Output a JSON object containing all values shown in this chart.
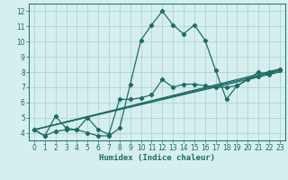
{
  "xlabel": "Humidex (Indice chaleur)",
  "xlim": [
    -0.5,
    23.5
  ],
  "ylim": [
    3.5,
    12.5
  ],
  "yticks": [
    4,
    5,
    6,
    7,
    8,
    9,
    10,
    11,
    12
  ],
  "xticks": [
    0,
    1,
    2,
    3,
    4,
    5,
    6,
    7,
    8,
    9,
    10,
    11,
    12,
    13,
    14,
    15,
    16,
    17,
    18,
    19,
    20,
    21,
    22,
    23
  ],
  "bg_color": "#d5efee",
  "grid_color": "#aed4d3",
  "line_color": "#1e6b65",
  "line1_x": [
    0,
    1,
    2,
    3,
    4,
    5,
    6,
    7,
    8,
    9,
    10,
    11,
    12,
    13,
    14,
    15,
    16,
    17,
    18,
    19,
    20,
    21,
    22,
    23
  ],
  "line1_y": [
    4.2,
    3.8,
    4.1,
    4.2,
    4.2,
    4.0,
    3.8,
    3.8,
    4.3,
    7.2,
    10.1,
    11.1,
    12.0,
    11.1,
    10.5,
    11.1,
    10.1,
    8.1,
    6.2,
    7.1,
    7.5,
    8.0,
    7.8,
    8.2
  ],
  "line2_x": [
    0,
    1,
    2,
    3,
    4,
    5,
    6,
    7,
    8,
    9,
    10,
    11,
    12,
    13,
    14,
    15,
    16,
    17,
    18,
    19,
    20,
    21,
    22,
    23
  ],
  "line2_y": [
    4.2,
    3.8,
    5.1,
    4.3,
    4.2,
    5.0,
    4.2,
    3.9,
    6.2,
    6.2,
    6.3,
    6.5,
    7.5,
    7.0,
    7.2,
    7.2,
    7.1,
    7.0,
    7.0,
    7.1,
    7.5,
    7.7,
    8.0,
    8.1
  ],
  "line3_y_end": 8.2,
  "line4_y_end": 8.1,
  "line5_y_end": 8.0,
  "line_start_y": 4.2,
  "line_start_x": 0,
  "line_end_x": 23
}
